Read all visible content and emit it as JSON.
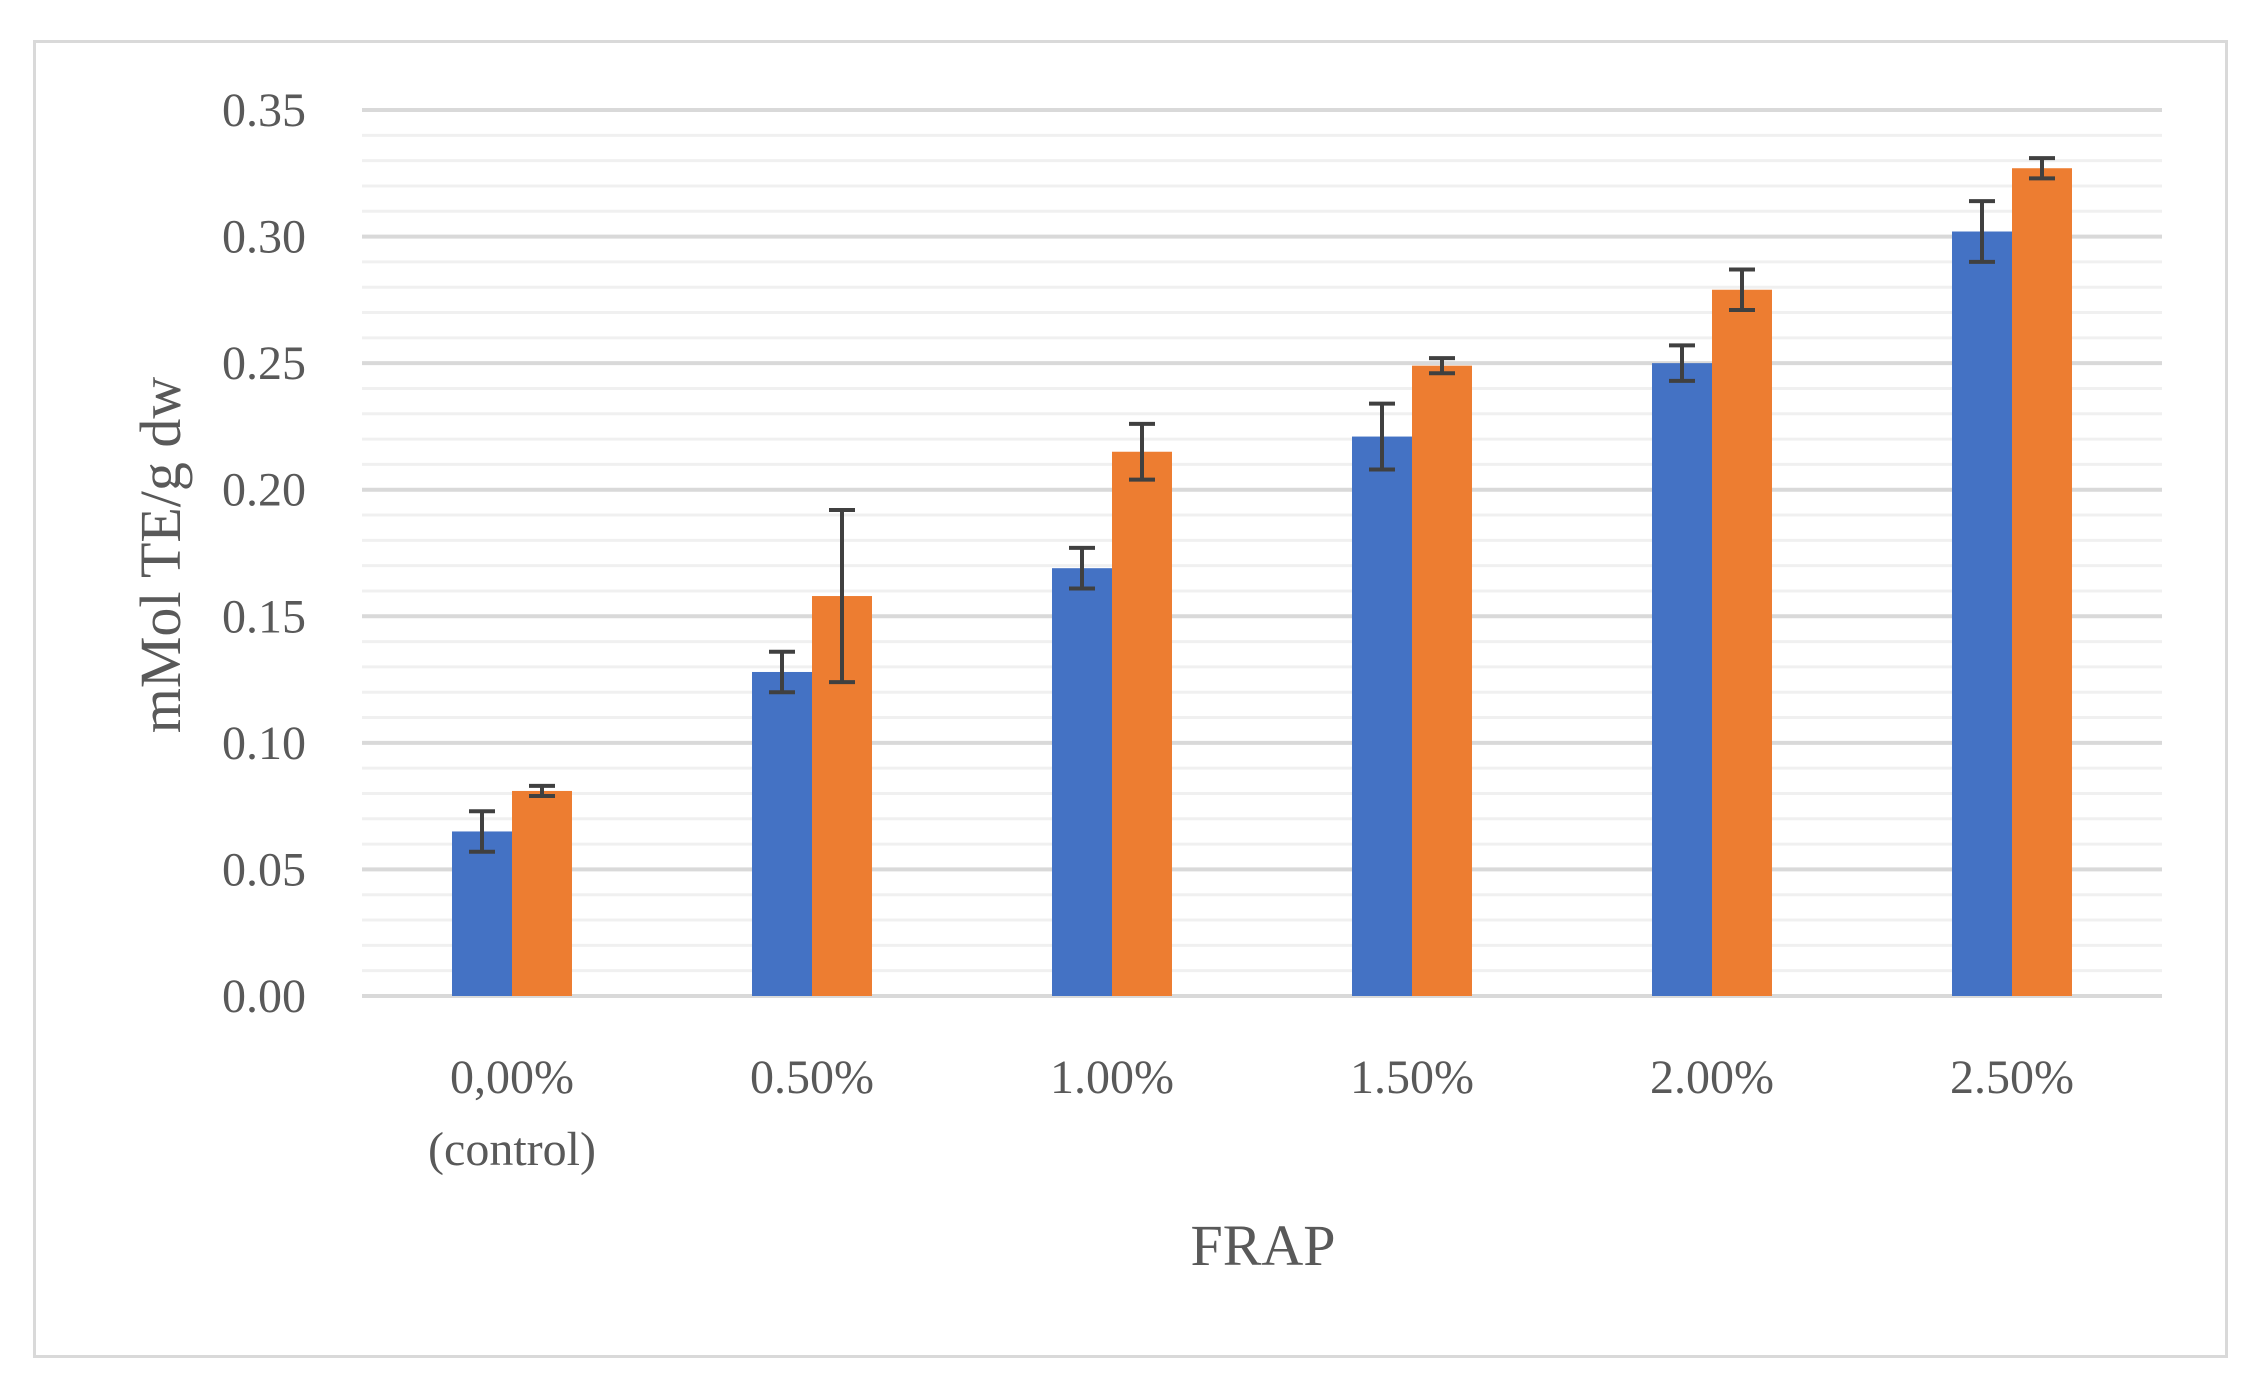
{
  "chart_data": {
    "type": "bar",
    "title": "",
    "xlabel": "FRAP",
    "ylabel": "mMol TE/g dw",
    "ylim": [
      0,
      0.35
    ],
    "yticks": [
      "0.00",
      "0.05",
      "0.10",
      "0.15",
      "0.20",
      "0.25",
      "0.30",
      "0.35"
    ],
    "categories": [
      [
        "0,00%",
        "(control)"
      ],
      [
        "0.50%"
      ],
      [
        "1.00%"
      ],
      [
        "1.50%"
      ],
      [
        "2.00%"
      ],
      [
        "2.50%"
      ]
    ],
    "grid": true,
    "legend": "none",
    "series": [
      {
        "color": "#4472c4",
        "values": [
          0.065,
          0.128,
          0.169,
          0.221,
          0.25,
          0.302
        ],
        "errors": [
          0.008,
          0.008,
          0.008,
          0.013,
          0.007,
          0.012
        ]
      },
      {
        "color": "#ed7d31",
        "values": [
          0.081,
          0.158,
          0.215,
          0.249,
          0.279,
          0.327
        ],
        "errors": [
          0.002,
          0.034,
          0.011,
          0.003,
          0.008,
          0.004
        ]
      }
    ]
  }
}
